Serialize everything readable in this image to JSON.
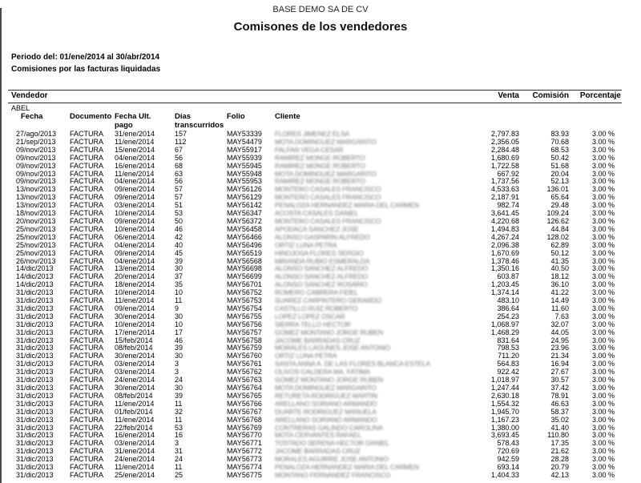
{
  "report": {
    "company": "BASE DEMO SA DE CV",
    "title": "Comisones de los vendedores",
    "period_label": "Periodo del: 01/ene/2014 al 30/abr/2014",
    "subtitle": "Comisiones por las facturas liquidadas"
  },
  "header": {
    "vendedor": "Vendedor",
    "venta": "Venta",
    "comision": "Comisión",
    "porcentaje": "Porcentaje"
  },
  "group": {
    "vendor": "ABEL"
  },
  "columns": {
    "fecha": "Fecha",
    "documento": "Documento",
    "fecha_ult_1": "Fecha Ult.",
    "fecha_ult_2": "pago",
    "dias_1": "Días",
    "dias_2": "transcurridos",
    "folio": "Folio",
    "cliente": "Cliente"
  },
  "colors": {
    "text": "#000000",
    "rule": "#2e2e2e",
    "censored_text": "#777777",
    "page_bg": "#ffffff",
    "edge_line": "#4a4a4a"
  },
  "rows": [
    {
      "fecha": "27/ago/2013",
      "documento": "FACTURA",
      "pago": "31/ene/2014",
      "dias": "157",
      "folio": "MAY53339",
      "cliente": "FLORES JIMENEZ ELSA",
      "venta": "2,797.83",
      "comision": "83.93",
      "porcentaje": "3.00 %"
    },
    {
      "fecha": "21/sep/2013",
      "documento": "FACTURA",
      "pago": "11/ene/2014",
      "dias": "112",
      "folio": "MAY54479",
      "cliente": "MOTA DOMINGUEZ MARGARITO",
      "venta": "2,356.05",
      "comision": "70.68",
      "porcentaje": "3.00 %"
    },
    {
      "fecha": "09/nov/2013",
      "documento": "FACTURA",
      "pago": "15/ene/2014",
      "dias": "67",
      "folio": "MAY55917",
      "cliente": "FALFAN VEGA CESAR",
      "venta": "2,284.48",
      "comision": "68.53",
      "porcentaje": "3.00 %"
    },
    {
      "fecha": "09/nov/2013",
      "documento": "FACTURA",
      "pago": "04/ene/2014",
      "dias": "56",
      "folio": "MAY55939",
      "cliente": "RAMIREZ MONGE ROBERTO",
      "venta": "1,680.69",
      "comision": "50.42",
      "porcentaje": "3.00 %"
    },
    {
      "fecha": "09/nov/2013",
      "documento": "FACTURA",
      "pago": "16/ene/2014",
      "dias": "68",
      "folio": "MAY55945",
      "cliente": "RAMIREZ MONGE ROBERTO",
      "venta": "1,722.58",
      "comision": "51.68",
      "porcentaje": "3.00 %"
    },
    {
      "fecha": "09/nov/2013",
      "documento": "FACTURA",
      "pago": "11/ene/2014",
      "dias": "63",
      "folio": "MAY55948",
      "cliente": "MOTA DOMINGUEZ MARGARITO",
      "venta": "667.92",
      "comision": "20.04",
      "porcentaje": "3.00 %"
    },
    {
      "fecha": "09/nov/2013",
      "documento": "FACTURA",
      "pago": "04/ene/2014",
      "dias": "56",
      "folio": "MAY55953",
      "cliente": "RAMIREZ MONGE ROBERTO",
      "venta": "1,737.56",
      "comision": "52.13",
      "porcentaje": "3.00 %"
    },
    {
      "fecha": "13/nov/2013",
      "documento": "FACTURA",
      "pago": "09/ene/2014",
      "dias": "57",
      "folio": "MAY56126",
      "cliente": "MONTERO CASALES FRANCISCO",
      "venta": "4,533.63",
      "comision": "136.01",
      "porcentaje": "3.00 %"
    },
    {
      "fecha": "13/nov/2013",
      "documento": "FACTURA",
      "pago": "09/ene/2014",
      "dias": "57",
      "folio": "MAY56129",
      "cliente": "MONTERO CASALES FRANCISCO",
      "venta": "2,187.91",
      "comision": "65.64",
      "porcentaje": "3.00 %"
    },
    {
      "fecha": "13/nov/2013",
      "documento": "FACTURA",
      "pago": "03/ene/2014",
      "dias": "51",
      "folio": "MAY56142",
      "cliente": "PENALOZA HERNANDEZ MARIA DEL CARMEN",
      "venta": "982.74",
      "comision": "29.48",
      "porcentaje": "3.00 %"
    },
    {
      "fecha": "18/nov/2013",
      "documento": "FACTURA",
      "pago": "10/ene/2014",
      "dias": "53",
      "folio": "MAY56347",
      "cliente": "ACOSTA CASALES DANIEL",
      "venta": "3,641.45",
      "comision": "109.24",
      "porcentaje": "3.00 %"
    },
    {
      "fecha": "20/nov/2013",
      "documento": "FACTURA",
      "pago": "09/ene/2014",
      "dias": "50",
      "folio": "MAY56372",
      "cliente": "MONTERO CASALES FRANCISCO",
      "venta": "4,220.68",
      "comision": "126.62",
      "porcentaje": "3.00 %"
    },
    {
      "fecha": "25/nov/2013",
      "documento": "FACTURA",
      "pago": "10/ene/2014",
      "dias": "46",
      "folio": "MAY56458",
      "cliente": "APODACA SANCHEZ JOSE",
      "venta": "1,494.83",
      "comision": "44.84",
      "porcentaje": "3.00 %"
    },
    {
      "fecha": "25/nov/2013",
      "documento": "FACTURA",
      "pago": "06/ene/2014",
      "dias": "42",
      "folio": "MAY56466",
      "cliente": "ALONSO GASPARIN ALFREDO",
      "venta": "4,267.24",
      "comision": "128.02",
      "porcentaje": "3.00 %"
    },
    {
      "fecha": "25/nov/2013",
      "documento": "FACTURA",
      "pago": "04/ene/2014",
      "dias": "40",
      "folio": "MAY56496",
      "cliente": "ORTIZ LUNA PETRA",
      "venta": "2,096.38",
      "comision": "62.89",
      "porcentaje": "3.00 %"
    },
    {
      "fecha": "25/nov/2013",
      "documento": "FACTURA",
      "pago": "09/ene/2014",
      "dias": "45",
      "folio": "MAY56519",
      "cliente": "HINOJOSA FLORES SERGIO",
      "venta": "1,670.69",
      "comision": "50.12",
      "porcentaje": "3.00 %"
    },
    {
      "fecha": "26/nov/2013",
      "documento": "FACTURA",
      "pago": "04/ene/2014",
      "dias": "39",
      "folio": "MAY56568",
      "cliente": "MIRANDA RUBIO ESMERALDA",
      "venta": "1,378.46",
      "comision": "41.35",
      "porcentaje": "3.00 %"
    },
    {
      "fecha": "14/dic/2013",
      "documento": "FACTURA",
      "pago": "13/ene/2014",
      "dias": "30",
      "folio": "MAY56698",
      "cliente": "ALONSO SANCHEZ ALFREDO",
      "venta": "1,350.16",
      "comision": "40.50",
      "porcentaje": "3.00 %"
    },
    {
      "fecha": "14/dic/2013",
      "documento": "FACTURA",
      "pago": "20/ene/2014",
      "dias": "37",
      "folio": "MAY56699",
      "cliente": "ALONSO SANCHEZ ALFREDO",
      "venta": "603.87",
      "comision": "18.12",
      "porcentaje": "3.00 %"
    },
    {
      "fecha": "14/dic/2013",
      "documento": "FACTURA",
      "pago": "18/ene/2014",
      "dias": "35",
      "folio": "MAY56701",
      "cliente": "ALONSO SANCHEZ ROSARIO",
      "venta": "1,203.45",
      "comision": "36.10",
      "porcentaje": "3.00 %"
    },
    {
      "fecha": "31/dic/2013",
      "documento": "FACTURA",
      "pago": "10/ene/2014",
      "dias": "10",
      "folio": "MAY56752",
      "cliente": "ROMERO CABRERA FIDEL",
      "venta": "1,374.14",
      "comision": "41.22",
      "porcentaje": "3.00 %"
    },
    {
      "fecha": "31/dic/2013",
      "documento": "FACTURA",
      "pago": "11/ene/2014",
      "dias": "11",
      "folio": "MAY56753",
      "cliente": "SUAREZ CARPINTERO GERARDO",
      "venta": "483.10",
      "comision": "14.49",
      "porcentaje": "3.00 %"
    },
    {
      "fecha": "31/dic/2013",
      "documento": "FACTURA",
      "pago": "09/ene/2014",
      "dias": "9",
      "folio": "MAY56754",
      "cliente": "CASTILLO RUIZ ROBERTO",
      "venta": "386.64",
      "comision": "11.60",
      "porcentaje": "3.00 %"
    },
    {
      "fecha": "31/dic/2013",
      "documento": "FACTURA",
      "pago": "30/ene/2014",
      "dias": "30",
      "folio": "MAY56755",
      "cliente": "LOPEZ LOPEZ OSCAR",
      "venta": "254.23",
      "comision": "7.63",
      "porcentaje": "3.00 %"
    },
    {
      "fecha": "31/dic/2013",
      "documento": "FACTURA",
      "pago": "10/ene/2014",
      "dias": "10",
      "folio": "MAY56756",
      "cliente": "SIERRA TELLO HECTOR",
      "venta": "1,068.97",
      "comision": "32.07",
      "porcentaje": "3.00 %"
    },
    {
      "fecha": "31/dic/2013",
      "documento": "FACTURA",
      "pago": "17/ene/2014",
      "dias": "17",
      "folio": "MAY56757",
      "cliente": "GOMEZ MONTANO JORGE RUBEN",
      "venta": "1,468.29",
      "comision": "44.05",
      "porcentaje": "3.00 %"
    },
    {
      "fecha": "31/dic/2013",
      "documento": "FACTURA",
      "pago": "15/feb/2014",
      "dias": "46",
      "folio": "MAY56758",
      "cliente": "JACOME BARRADAS CRUZ",
      "venta": "831.64",
      "comision": "24.95",
      "porcentaje": "3.00 %"
    },
    {
      "fecha": "31/dic/2013",
      "documento": "FACTURA",
      "pago": "08/feb/2014",
      "dias": "39",
      "folio": "MAY56759",
      "cliente": "MORALES LAGUNES JOSE ANTONIO",
      "venta": "798.53",
      "comision": "23.96",
      "porcentaje": "3.00 %"
    },
    {
      "fecha": "31/dic/2013",
      "documento": "FACTURA",
      "pago": "30/ene/2014",
      "dias": "30",
      "folio": "MAY56760",
      "cliente": "ORTIZ LUNA PETRA",
      "venta": "711.20",
      "comision": "21.34",
      "porcentaje": "3.00 %"
    },
    {
      "fecha": "31/dic/2013",
      "documento": "FACTURA",
      "pago": "03/ene/2014",
      "dias": "3",
      "folio": "MAY56761",
      "cliente": "SANTA ANNA A. DE LAS FLORES BLANCA ESTELA",
      "venta": "564.83",
      "comision": "16.94",
      "porcentaje": "3.00 %"
    },
    {
      "fecha": "31/dic/2013",
      "documento": "FACTURA",
      "pago": "03/ene/2014",
      "dias": "3",
      "folio": "MAY56762",
      "cliente": "OLIVOS CALDERA MA. FATIMA",
      "venta": "922.42",
      "comision": "27.67",
      "porcentaje": "3.00 %"
    },
    {
      "fecha": "31/dic/2013",
      "documento": "FACTURA",
      "pago": "24/ene/2014",
      "dias": "24",
      "folio": "MAY56763",
      "cliente": "GOMEZ MONTANO JORGE RUBEN",
      "venta": "1,018.97",
      "comision": "30.57",
      "porcentaje": "3.00 %"
    },
    {
      "fecha": "31/dic/2013",
      "documento": "FACTURA",
      "pago": "30/ene/2014",
      "dias": "30",
      "folio": "MAY56764",
      "cliente": "MOTA DOMINGUEZ MARGARITO",
      "venta": "1,247.44",
      "comision": "37.42",
      "porcentaje": "3.00 %"
    },
    {
      "fecha": "31/dic/2013",
      "documento": "FACTURA",
      "pago": "08/feb/2014",
      "dias": "39",
      "folio": "MAY56765",
      "cliente": "RETURETA RODRIGUEZ MARTIN",
      "venta": "2,630.18",
      "comision": "78.91",
      "porcentaje": "3.00 %"
    },
    {
      "fecha": "31/dic/2013",
      "documento": "FACTURA",
      "pago": "11/ene/2014",
      "dias": "11",
      "folio": "MAY56766",
      "cliente": "ARELLANO SORIANO ARMANDO",
      "venta": "1,554.32",
      "comision": "46.63",
      "porcentaje": "3.00 %"
    },
    {
      "fecha": "31/dic/2013",
      "documento": "FACTURA",
      "pago": "01/feb/2014",
      "dias": "32",
      "folio": "MAY56767",
      "cliente": "DUARTE RODRIGUEZ MANUELA",
      "venta": "1,945.70",
      "comision": "58.37",
      "porcentaje": "3.00 %"
    },
    {
      "fecha": "31/dic/2013",
      "documento": "FACTURA",
      "pago": "11/ene/2014",
      "dias": "11",
      "folio": "MAY56768",
      "cliente": "ARELLANO SORIANO ARMANDO",
      "venta": "1,167.23",
      "comision": "35.02",
      "porcentaje": "3.00 %"
    },
    {
      "fecha": "31/dic/2013",
      "documento": "FACTURA",
      "pago": "22/feb/2014",
      "dias": "53",
      "folio": "MAY56769",
      "cliente": "CONTRERAS GALINDO CAROLINA",
      "venta": "1,380.00",
      "comision": "41.40",
      "porcentaje": "3.00 %"
    },
    {
      "fecha": "31/dic/2013",
      "documento": "FACTURA",
      "pago": "16/ene/2014",
      "dias": "16",
      "folio": "MAY56770",
      "cliente": "MOTA CERVANTES RAFAEL",
      "venta": "3,693.45",
      "comision": "110.80",
      "porcentaje": "3.00 %"
    },
    {
      "fecha": "31/dic/2013",
      "documento": "FACTURA",
      "pago": "03/ene/2014",
      "dias": "3",
      "folio": "MAY56771",
      "cliente": "TOSTADO SERENA HECTOR DANIEL",
      "venta": "578.43",
      "comision": "17.35",
      "porcentaje": "3.00 %"
    },
    {
      "fecha": "31/dic/2013",
      "documento": "FACTURA",
      "pago": "31/ene/2014",
      "dias": "31",
      "folio": "MAY56772",
      "cliente": "JACOME BARRADAS CRUZ",
      "venta": "720.69",
      "comision": "21.62",
      "porcentaje": "3.00 %"
    },
    {
      "fecha": "31/dic/2013",
      "documento": "FACTURA",
      "pago": "24/ene/2014",
      "dias": "24",
      "folio": "MAY56773",
      "cliente": "MORALES AGUIRRE JOSE ANTONIO",
      "venta": "942.59",
      "comision": "28.28",
      "porcentaje": "3.00 %"
    },
    {
      "fecha": "31/dic/2013",
      "documento": "FACTURA",
      "pago": "11/ene/2014",
      "dias": "11",
      "folio": "MAY56774",
      "cliente": "PENALOZA HERNANDEZ MARIA DEL CARMEN",
      "venta": "693.14",
      "comision": "20.79",
      "porcentaje": "3.00 %"
    },
    {
      "fecha": "31/dic/2013",
      "documento": "FACTURA",
      "pago": "25/ene/2014",
      "dias": "25",
      "folio": "MAY56775",
      "cliente": "MONTANO FERNANDEZ FRANCISCO",
      "venta": "1,404.33",
      "comision": "42.13",
      "porcentaje": "3.00 %"
    }
  ]
}
